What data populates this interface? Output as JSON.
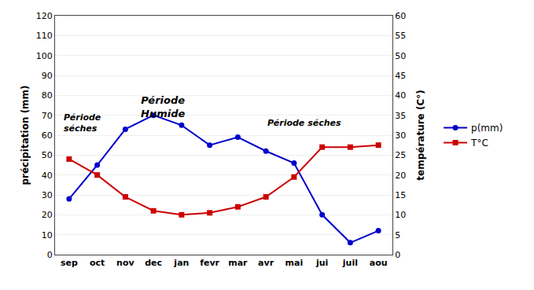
{
  "chart_data": {
    "type": "line",
    "categories": [
      "sep",
      "oct",
      "nov",
      "dec",
      "jan",
      "fevr",
      "mar",
      "avr",
      "mai",
      "jui",
      "juil",
      "aou"
    ],
    "series": [
      {
        "name": "p(mm)",
        "color": "#0000CC",
        "marker": "circle",
        "values": [
          28,
          45,
          63,
          70,
          65,
          55,
          59,
          52,
          46,
          20,
          6,
          12
        ]
      },
      {
        "name": "T°C",
        "color": "#CC0000",
        "marker": "square",
        "axis": "y2",
        "values": [
          24,
          20,
          14.5,
          11,
          10,
          10.5,
          12,
          14.5,
          19.5,
          27,
          27,
          27.5
        ]
      }
    ],
    "y_label": "précipitation (mm)",
    "y2_label": "température (C°)",
    "ylim": [
      0,
      120
    ],
    "yticks": [
      0,
      10,
      20,
      30,
      40,
      50,
      60,
      70,
      80,
      90,
      100,
      110,
      120
    ],
    "y2lim": [
      0,
      60
    ],
    "y2ticks": [
      0,
      5,
      10,
      15,
      20,
      25,
      30,
      35,
      40,
      45,
      50,
      55,
      60
    ],
    "annotations": [
      "Période\nséches",
      "Période\nHumide",
      "Période séches"
    ],
    "grid": true,
    "legend": "right"
  }
}
